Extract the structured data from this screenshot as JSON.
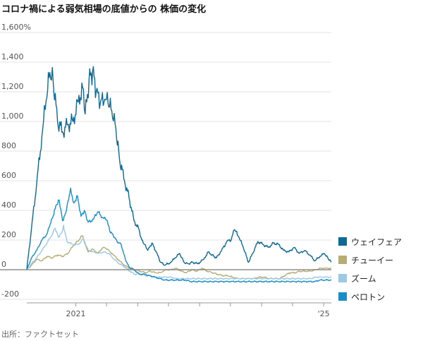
{
  "title": "コロナ禍による弱気相場の底値からの 株価の変化",
  "source": "出所：ファクトセット",
  "chart_data": {
    "type": "line",
    "ylim": [
      -200,
      1600
    ],
    "y_unit_suffix": "%",
    "y_ticks": [
      1600,
      1400,
      1200,
      1000,
      800,
      600,
      400,
      200,
      0,
      -200
    ],
    "y_tick_labels": [
      "1,600%",
      "1,400",
      "1,200",
      "1,000",
      "800",
      "600",
      "400",
      "200",
      "0",
      "-200"
    ],
    "x_range": [
      "2020-03-18",
      "2025-02-15"
    ],
    "x_tick_dates": [
      "2021-01-01",
      "2021-07-01",
      "2022-01-01",
      "2022-07-01",
      "2023-01-01",
      "2023-07-01",
      "2024-01-01",
      "2024-07-01",
      "2025-01-01"
    ],
    "x_tick_labels": [
      {
        "date": "2021-01-01",
        "label": "2021"
      },
      {
        "date": "2025-01-01",
        "label": "'25"
      }
    ],
    "x_grid": false,
    "y_grid": true,
    "legend": "right",
    "series": [
      {
        "name": "ウェイフェア",
        "color": "#0e6a94",
        "points": [
          [
            "2020-03-18",
            0
          ],
          [
            "2020-04-15",
            280
          ],
          [
            "2020-05-15",
            580
          ],
          [
            "2020-06-15",
            900
          ],
          [
            "2020-07-10",
            1140
          ],
          [
            "2020-08-01",
            1330
          ],
          [
            "2020-08-20",
            1280
          ],
          [
            "2020-09-15",
            1000
          ],
          [
            "2020-10-15",
            930
          ],
          [
            "2020-11-15",
            980
          ],
          [
            "2020-12-15",
            1000
          ],
          [
            "2021-01-15",
            1130
          ],
          [
            "2021-02-10",
            1230
          ],
          [
            "2021-02-25",
            1050
          ],
          [
            "2021-03-20",
            1280
          ],
          [
            "2021-04-10",
            1340
          ],
          [
            "2021-05-01",
            1200
          ],
          [
            "2021-05-25",
            1120
          ],
          [
            "2021-06-20",
            1150
          ],
          [
            "2021-07-10",
            1120
          ],
          [
            "2021-08-01",
            1070
          ],
          [
            "2021-08-25",
            950
          ],
          [
            "2021-09-15",
            750
          ],
          [
            "2021-10-15",
            600
          ],
          [
            "2021-11-10",
            490
          ],
          [
            "2021-12-10",
            330
          ],
          [
            "2022-01-05",
            280
          ],
          [
            "2022-01-25",
            200
          ],
          [
            "2022-02-10",
            170
          ],
          [
            "2022-03-01",
            130
          ],
          [
            "2022-03-25",
            180
          ],
          [
            "2022-04-20",
            120
          ],
          [
            "2022-05-15",
            50
          ],
          [
            "2022-06-10",
            30
          ],
          [
            "2022-07-15",
            50
          ],
          [
            "2022-08-10",
            80
          ],
          [
            "2022-09-05",
            110
          ],
          [
            "2022-09-30",
            50
          ],
          [
            "2022-10-25",
            40
          ],
          [
            "2022-11-20",
            50
          ],
          [
            "2022-12-20",
            40
          ],
          [
            "2023-01-25",
            70
          ],
          [
            "2023-02-20",
            120
          ],
          [
            "2023-03-15",
            100
          ],
          [
            "2023-04-10",
            80
          ],
          [
            "2023-05-10",
            130
          ],
          [
            "2023-06-10",
            190
          ],
          [
            "2023-07-05",
            200
          ],
          [
            "2023-07-25",
            270
          ],
          [
            "2023-08-20",
            220
          ],
          [
            "2023-09-15",
            150
          ],
          [
            "2023-10-15",
            50
          ],
          [
            "2023-11-10",
            110
          ],
          [
            "2023-12-10",
            190
          ],
          [
            "2024-01-10",
            170
          ],
          [
            "2024-02-10",
            150
          ],
          [
            "2024-03-10",
            180
          ],
          [
            "2024-04-10",
            170
          ],
          [
            "2024-05-10",
            130
          ],
          [
            "2024-06-10",
            120
          ],
          [
            "2024-07-10",
            150
          ],
          [
            "2024-08-10",
            110
          ],
          [
            "2024-09-10",
            130
          ],
          [
            "2024-10-10",
            100
          ],
          [
            "2024-11-10",
            60
          ],
          [
            "2024-12-10",
            90
          ],
          [
            "2025-01-05",
            110
          ],
          [
            "2025-01-25",
            80
          ],
          [
            "2025-02-15",
            50
          ]
        ]
      },
      {
        "name": "チューイー",
        "color": "#b5ad74",
        "points": [
          [
            "2020-03-18",
            0
          ],
          [
            "2020-04-15",
            30
          ],
          [
            "2020-05-15",
            70
          ],
          [
            "2020-06-15",
            60
          ],
          [
            "2020-07-15",
            90
          ],
          [
            "2020-08-15",
            80
          ],
          [
            "2020-09-15",
            100
          ],
          [
            "2020-10-15",
            90
          ],
          [
            "2020-11-15",
            110
          ],
          [
            "2020-12-15",
            160
          ],
          [
            "2021-01-10",
            190
          ],
          [
            "2021-02-10",
            230
          ],
          [
            "2021-02-25",
            170
          ],
          [
            "2021-03-15",
            120
          ],
          [
            "2021-04-10",
            140
          ],
          [
            "2021-05-10",
            110
          ],
          [
            "2021-06-10",
            150
          ],
          [
            "2021-07-05",
            140
          ],
          [
            "2021-08-10",
            100
          ],
          [
            "2021-09-15",
            60
          ],
          [
            "2021-10-15",
            30
          ],
          [
            "2021-11-15",
            10
          ],
          [
            "2021-12-15",
            0
          ],
          [
            "2022-01-15",
            -10
          ],
          [
            "2022-02-15",
            -20
          ],
          [
            "2022-03-15",
            -10
          ],
          [
            "2022-04-15",
            -20
          ],
          [
            "2022-05-15",
            -20
          ],
          [
            "2022-06-15",
            0
          ],
          [
            "2022-07-15",
            0
          ],
          [
            "2022-08-15",
            10
          ],
          [
            "2022-09-15",
            -10
          ],
          [
            "2022-10-15",
            -20
          ],
          [
            "2022-11-15",
            0
          ],
          [
            "2022-12-15",
            -10
          ],
          [
            "2023-01-15",
            10
          ],
          [
            "2023-02-15",
            -10
          ],
          [
            "2023-03-15",
            -20
          ],
          [
            "2023-04-15",
            -30
          ],
          [
            "2023-05-15",
            -40
          ],
          [
            "2023-06-15",
            -40
          ],
          [
            "2023-07-15",
            -50
          ],
          [
            "2023-08-15",
            -60
          ],
          [
            "2023-09-15",
            -60
          ],
          [
            "2023-10-15",
            -60
          ],
          [
            "2023-11-15",
            -60
          ],
          [
            "2023-12-15",
            -50
          ],
          [
            "2024-01-15",
            -50
          ],
          [
            "2024-02-15",
            -60
          ],
          [
            "2024-03-15",
            -60
          ],
          [
            "2024-04-15",
            -60
          ],
          [
            "2024-05-15",
            -40
          ],
          [
            "2024-06-15",
            -20
          ],
          [
            "2024-07-15",
            -20
          ],
          [
            "2024-08-15",
            -10
          ],
          [
            "2024-09-15",
            -10
          ],
          [
            "2024-10-15",
            -10
          ],
          [
            "2024-11-15",
            0
          ],
          [
            "2024-12-15",
            10
          ],
          [
            "2025-01-15",
            10
          ],
          [
            "2025-02-15",
            10
          ]
        ]
      },
      {
        "name": "ズーム",
        "color": "#9cc9e6",
        "points": [
          [
            "2020-03-18",
            0
          ],
          [
            "2020-04-15",
            40
          ],
          [
            "2020-05-15",
            80
          ],
          [
            "2020-06-15",
            130
          ],
          [
            "2020-07-15",
            180
          ],
          [
            "2020-08-15",
            240
          ],
          [
            "2020-09-01",
            280
          ],
          [
            "2020-09-20",
            220
          ],
          [
            "2020-10-10",
            250
          ],
          [
            "2020-10-20",
            300
          ],
          [
            "2020-11-10",
            190
          ],
          [
            "2020-12-15",
            170
          ],
          [
            "2021-01-15",
            170
          ],
          [
            "2021-02-15",
            210
          ],
          [
            "2021-03-15",
            130
          ],
          [
            "2021-04-15",
            120
          ],
          [
            "2021-05-15",
            110
          ],
          [
            "2021-06-15",
            120
          ],
          [
            "2021-07-15",
            110
          ],
          [
            "2021-08-15",
            70
          ],
          [
            "2021-09-15",
            40
          ],
          [
            "2021-10-15",
            20
          ],
          [
            "2021-11-15",
            -10
          ],
          [
            "2021-12-15",
            -30
          ],
          [
            "2022-01-15",
            -30
          ],
          [
            "2022-02-15",
            -40
          ],
          [
            "2022-03-15",
            -40
          ],
          [
            "2022-04-15",
            -50
          ],
          [
            "2022-05-15",
            -50
          ],
          [
            "2022-06-15",
            -50
          ],
          [
            "2022-07-15",
            -50
          ],
          [
            "2022-08-15",
            -60
          ],
          [
            "2022-09-15",
            -60
          ],
          [
            "2022-10-15",
            -60
          ],
          [
            "2022-11-15",
            -60
          ],
          [
            "2022-12-15",
            -60
          ],
          [
            "2023-01-15",
            -60
          ],
          [
            "2023-02-15",
            -60
          ],
          [
            "2023-03-15",
            -60
          ],
          [
            "2023-04-15",
            -60
          ],
          [
            "2023-05-15",
            -60
          ],
          [
            "2023-06-15",
            -60
          ],
          [
            "2023-07-15",
            -60
          ],
          [
            "2023-08-15",
            -60
          ],
          [
            "2023-09-15",
            -60
          ],
          [
            "2023-10-15",
            -60
          ],
          [
            "2023-11-15",
            -60
          ],
          [
            "2023-12-15",
            -60
          ],
          [
            "2024-01-15",
            -60
          ],
          [
            "2024-02-15",
            -60
          ],
          [
            "2024-03-15",
            -60
          ],
          [
            "2024-04-15",
            -60
          ],
          [
            "2024-05-15",
            -60
          ],
          [
            "2024-06-15",
            -60
          ],
          [
            "2024-07-15",
            -60
          ],
          [
            "2024-08-15",
            -60
          ],
          [
            "2024-09-15",
            -60
          ],
          [
            "2024-10-15",
            -60
          ],
          [
            "2024-11-15",
            -50
          ],
          [
            "2024-12-15",
            -50
          ],
          [
            "2025-01-15",
            -50
          ],
          [
            "2025-02-15",
            -50
          ]
        ]
      },
      {
        "name": "ペロトン",
        "color": "#1c8dc7",
        "points": [
          [
            "2020-03-18",
            0
          ],
          [
            "2020-04-15",
            80
          ],
          [
            "2020-05-15",
            130
          ],
          [
            "2020-06-15",
            200
          ],
          [
            "2020-07-15",
            240
          ],
          [
            "2020-08-01",
            300
          ],
          [
            "2020-08-20",
            360
          ],
          [
            "2020-09-10",
            440
          ],
          [
            "2020-09-25",
            470
          ],
          [
            "2020-10-15",
            330
          ],
          [
            "2020-11-01",
            380
          ],
          [
            "2020-11-15",
            460
          ],
          [
            "2020-12-01",
            550
          ],
          [
            "2020-12-20",
            450
          ],
          [
            "2021-01-10",
            500
          ],
          [
            "2021-02-01",
            360
          ],
          [
            "2021-02-20",
            400
          ],
          [
            "2021-03-15",
            320
          ],
          [
            "2021-04-15",
            340
          ],
          [
            "2021-05-10",
            390
          ],
          [
            "2021-06-10",
            350
          ],
          [
            "2021-07-05",
            330
          ],
          [
            "2021-07-20",
            260
          ],
          [
            "2021-08-10",
            230
          ],
          [
            "2021-09-01",
            190
          ],
          [
            "2021-09-25",
            170
          ],
          [
            "2021-10-20",
            70
          ],
          [
            "2021-11-10",
            20
          ],
          [
            "2021-12-10",
            0
          ],
          [
            "2022-01-10",
            -30
          ],
          [
            "2022-02-10",
            -30
          ],
          [
            "2022-03-10",
            -40
          ],
          [
            "2022-04-10",
            -50
          ],
          [
            "2022-05-10",
            -60
          ],
          [
            "2022-06-10",
            -70
          ],
          [
            "2022-07-10",
            -70
          ],
          [
            "2022-08-10",
            -70
          ],
          [
            "2022-09-10",
            -70
          ],
          [
            "2022-10-10",
            -70
          ],
          [
            "2022-11-10",
            -80
          ],
          [
            "2022-12-10",
            -80
          ],
          [
            "2023-01-10",
            -80
          ],
          [
            "2023-02-10",
            -80
          ],
          [
            "2023-03-10",
            -80
          ],
          [
            "2023-04-10",
            -80
          ],
          [
            "2023-05-10",
            -80
          ],
          [
            "2023-06-10",
            -80
          ],
          [
            "2023-07-10",
            -80
          ],
          [
            "2023-08-10",
            -80
          ],
          [
            "2023-09-10",
            -80
          ],
          [
            "2023-10-10",
            -80
          ],
          [
            "2023-11-10",
            -80
          ],
          [
            "2023-12-10",
            -80
          ],
          [
            "2024-01-10",
            -80
          ],
          [
            "2024-02-10",
            -80
          ],
          [
            "2024-03-10",
            -80
          ],
          [
            "2024-04-10",
            -80
          ],
          [
            "2024-05-10",
            -80
          ],
          [
            "2024-06-10",
            -80
          ],
          [
            "2024-07-10",
            -80
          ],
          [
            "2024-08-10",
            -80
          ],
          [
            "2024-09-10",
            -80
          ],
          [
            "2024-10-10",
            -80
          ],
          [
            "2024-11-10",
            -80
          ],
          [
            "2024-12-10",
            -70
          ],
          [
            "2025-01-10",
            -70
          ],
          [
            "2025-02-15",
            -70
          ]
        ]
      }
    ]
  }
}
